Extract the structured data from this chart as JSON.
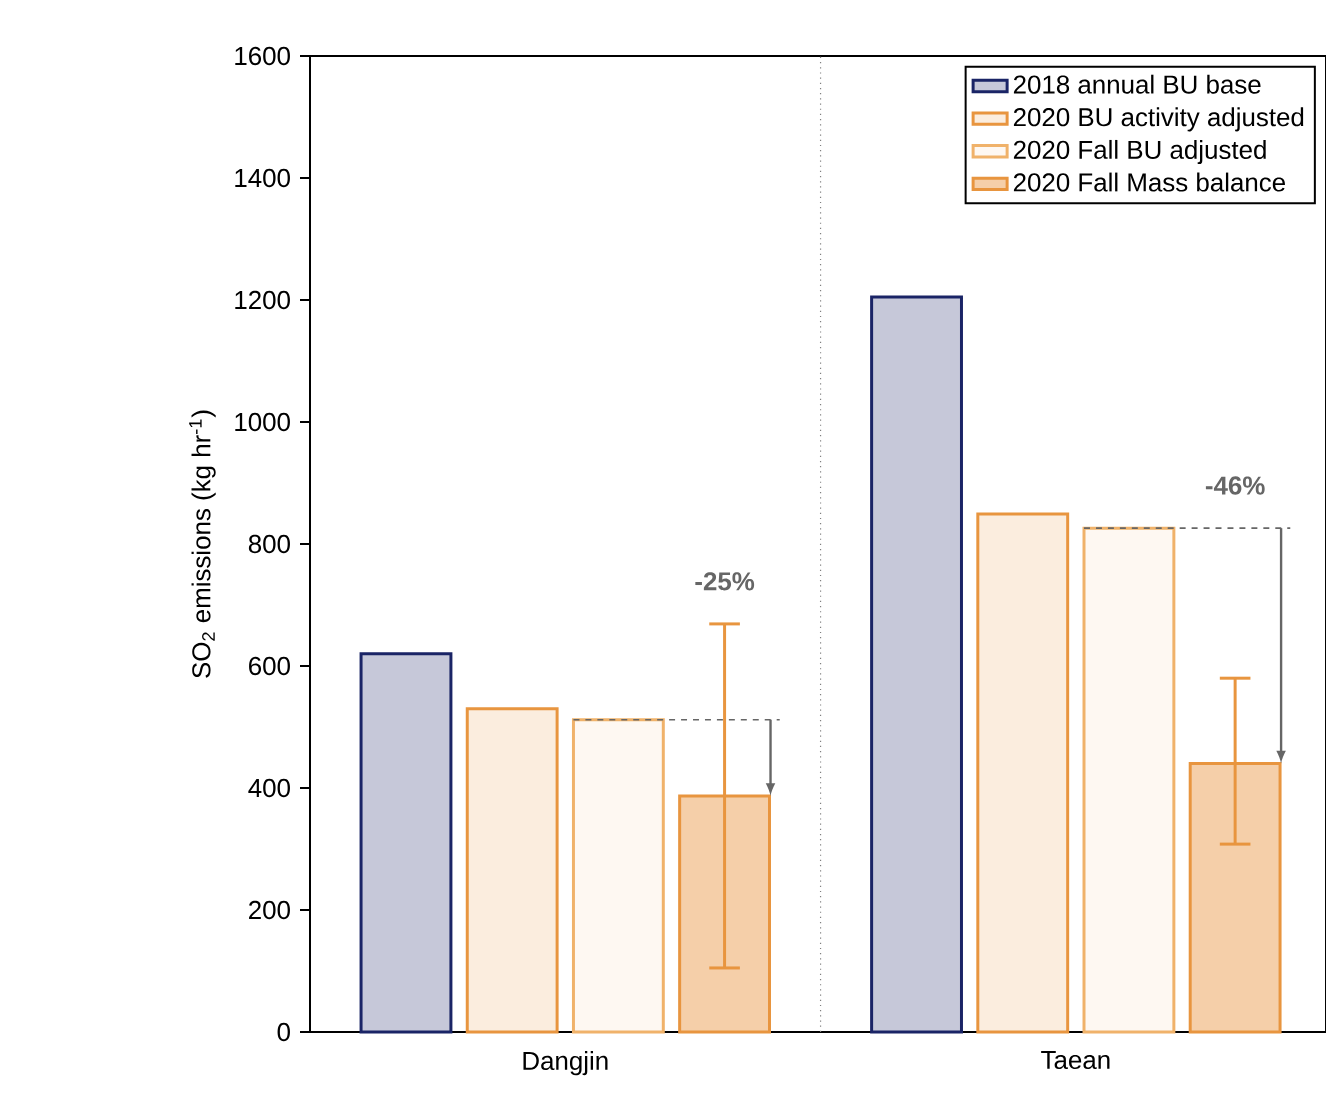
{
  "chart_data": {
    "type": "bar",
    "ylabel": "SO$_{2}$ emissions (kg hr$^{-1}$)",
    "categories": [
      "Dangjin",
      "Taean"
    ],
    "series": [
      {
        "name": "2018 annual BU base",
        "color": "#1a2466",
        "values": [
          620,
          1205
        ]
      },
      {
        "name": "2020 BU activity adjusted",
        "color": "#e8953f",
        "values": [
          530,
          849
        ]
      },
      {
        "name": "2020 Fall BU adjusted",
        "color": "#f0b26a",
        "values": [
          512,
          826
        ]
      },
      {
        "name": "2020 Fall Mass balance",
        "color": "#e8953f",
        "values": [
          387,
          440
        ],
        "errors": [
          [
            105,
            669
          ],
          [
            308,
            580
          ]
        ]
      }
    ],
    "ylim": [
      0,
      1600
    ],
    "yticks": [
      0,
      200,
      400,
      600,
      800,
      1000,
      1200,
      1400,
      1600
    ],
    "annotations": [
      "-25%",
      "-46%"
    ],
    "ref_lines": [
      {
        "axis": "y",
        "value": 512,
        "color": "#666666",
        "line_style": "dashed"
      },
      {
        "axis": "y",
        "value": 826,
        "color": "#666666",
        "line_style": "dashed"
      }
    ],
    "legend": "top right",
    "grid": false
  }
}
